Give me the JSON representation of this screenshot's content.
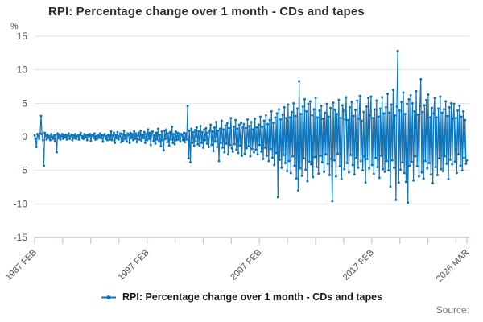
{
  "title": "RPI: Percentage change over 1 month - CDs and tapes",
  "y_axis": {
    "unit_label": "%",
    "ticks": [
      15,
      10,
      5,
      0,
      -5,
      -10,
      -15
    ],
    "min": -15,
    "max": 15
  },
  "x_axis": {
    "tick_count": 17,
    "labeled_tick_indices": [
      0,
      4,
      8,
      12,
      16
    ],
    "labels": [
      "1987 FEB",
      "1997 FEB",
      "2007 FEB",
      "2017 FEB",
      "2026 MAR"
    ]
  },
  "legend": {
    "label": "RPI: Percentage change over 1 month - CDs and tapes",
    "marker": "line-with-dot"
  },
  "source_label": "Source:",
  "colors": {
    "line": "#1076bc",
    "grid": "#e2e2e2",
    "axis": "#b9c7d6",
    "tick_text": "#4d4d4d",
    "title_text": "#2e2e2e",
    "source_text": "#7d7d7d"
  },
  "chart_data": {
    "type": "line",
    "title": "RPI: Percentage change over 1 month - CDs and tapes",
    "legend": "RPI: Percentage change over 1 month - CDs and tapes",
    "unit": "%",
    "frequency": "monthly",
    "x_start": "1987-02",
    "x_end": "2026-03",
    "ylim": [
      -15,
      15
    ],
    "grid": true,
    "legend_position": "bottom-center",
    "x_tick_labels": [
      "1987 FEB",
      "1997 FEB",
      "2007 FEB",
      "2017 FEB",
      "2026 MAR"
    ],
    "notable_points": [
      {
        "x": "2019-12",
        "y": 12.8
      },
      {
        "x": "2020-11",
        "y": -9.8
      },
      {
        "x": "2014-01",
        "y": -9.6
      },
      {
        "x": "2009-03",
        "y": -9.0
      },
      {
        "x": "2011-01",
        "y": 8.3
      },
      {
        "x": "2022-01",
        "y": 8.6
      }
    ],
    "values": [
      0.2,
      -0.3,
      -1.5,
      0.4,
      0.1,
      -0.3,
      0.5,
      3.1,
      0.4,
      -0.5,
      -4.3,
      0.6,
      0.2,
      -0.4,
      0.3,
      -0.2,
      0.1,
      -0.5,
      0.4,
      0.0,
      -0.3,
      0.2,
      -0.6,
      0.3,
      -2.3,
      0.5,
      -0.2,
      0.3,
      -0.4,
      0.1,
      0.4,
      -0.3,
      0.2,
      -0.1,
      0.3,
      -0.4,
      0.2,
      0.5,
      -0.3,
      0.1,
      0.3,
      -0.5,
      0.2,
      -0.2,
      0.4,
      -0.3,
      0.1,
      0.2,
      -0.4,
      0.3,
      0.6,
      -0.2,
      0.1,
      -0.3,
      0.4,
      -0.1,
      0.2,
      -0.5,
      0.3,
      0.1,
      0.4,
      -0.6,
      0.2,
      0.3,
      -0.2,
      0.5,
      -0.4,
      0.1,
      -0.3,
      0.2,
      -0.1,
      0.5,
      -0.2,
      0.3,
      -0.7,
      0.2,
      0.4,
      -0.3,
      0.1,
      -0.5,
      0.3,
      0.2,
      -0.4,
      0.8,
      -0.5,
      0.2,
      0.6,
      -0.9,
      0.3,
      -0.2,
      0.7,
      -0.4,
      0.1,
      0.5,
      -0.8,
      0.4,
      -0.6,
      0.9,
      -0.3,
      0.2,
      -0.7,
      0.5,
      0.3,
      -0.9,
      0.6,
      -0.2,
      0.4,
      -0.5,
      0.8,
      -0.3,
      0.5,
      -0.8,
      0.2,
      0.6,
      -0.4,
      0.9,
      -0.6,
      0.3,
      -0.2,
      0.7,
      -0.9,
      0.4,
      -0.5,
      1.1,
      -0.3,
      0.6,
      -1.2,
      0.5,
      0.8,
      -0.6,
      0.2,
      -1.0,
      0.6,
      -0.4,
      1.2,
      -0.7,
      0.3,
      -1.4,
      0.8,
      -0.5,
      -2.0,
      0.9,
      -0.3,
      1.1,
      -0.8,
      0.5,
      -1.3,
      0.7,
      -0.4,
      1.5,
      -0.9,
      0.4,
      -1.1,
      0.8,
      -0.5,
      0.6,
      -0.4,
      0.5,
      -0.7,
      0.4,
      0.3,
      -0.5,
      0.6,
      -0.8,
      0.5,
      -0.4,
      4.6,
      -3.2,
      0.9,
      -3.8,
      1.2,
      -0.9,
      0.7,
      -1.3,
      1.0,
      -0.7,
      1.4,
      -1.1,
      0.8,
      -1.3,
      1.6,
      -0.9,
      0.7,
      -1.6,
      1.1,
      -0.5,
      1.3,
      -1.0,
      0.6,
      -1.5,
      0.9,
      1.8,
      -1.2,
      0.8,
      -2.1,
      1.4,
      -0.7,
      2.2,
      -1.5,
      0.9,
      -3.6,
      1.2,
      -0.9,
      2.4,
      -1.6,
      1.1,
      -2.3,
      1.7,
      -1.0,
      2.0,
      -2.6,
      1.3,
      -1.2,
      2.8,
      -1.7,
      -2.2,
      1.5,
      -1.1,
      2.5,
      -1.9,
      1.2,
      -2.4,
      1.8,
      -1.3,
      2.1,
      -2.8,
      1.4,
      1.9,
      -2.5,
      1.3,
      -1.7,
      2.6,
      -1.4,
      1.6,
      -2.9,
      2.2,
      -1.8,
      1.1,
      -2.3,
      2.7,
      -1.9,
      1.4,
      -2.6,
      1.8,
      -1.2,
      3.0,
      -2.2,
      1.5,
      -3.3,
      2.4,
      -1.6,
      3.2,
      -2.8,
      1.9,
      -3.6,
      2.5,
      -1.8,
      3.8,
      -3.1,
      2.1,
      -4.2,
      2.9,
      -2.4,
      3.5,
      -9.0,
      4.1,
      -3.4,
      2.6,
      -4.6,
      3.3,
      -2.7,
      4.4,
      -3.9,
      2.8,
      -5.1,
      4.8,
      -3.6,
      2.9,
      -5.4,
      3.7,
      -2.9,
      5.0,
      -4.3,
      3.1,
      -6.2,
      4.2,
      -8.0,
      8.3,
      -4.7,
      3.4,
      -5.8,
      4.5,
      -3.2,
      5.6,
      -4.9,
      3.8,
      -6.6,
      4.9,
      -3.7,
      5.3,
      -4.1,
      3.2,
      -6.0,
      4.1,
      -3.0,
      5.8,
      -4.5,
      2.9,
      -5.5,
      3.9,
      -2.8,
      4.6,
      -3.8,
      2.7,
      -5.2,
      3.6,
      -2.6,
      4.9,
      -4.0,
      3.0,
      -5.7,
      4.3,
      -3.3,
      -9.6,
      5.1,
      -3.5,
      4.0,
      -5.9,
      3.4,
      -2.5,
      5.5,
      -4.4,
      2.8,
      -6.3,
      4.7,
      3.9,
      -4.8,
      2.6,
      5.9,
      -3.9,
      2.5,
      -5.3,
      4.4,
      -2.7,
      5.2,
      -4.2,
      3.1,
      -5.6,
      4.0,
      -3.1,
      5.4,
      -4.6,
      2.7,
      6.1,
      -3.6,
      2.4,
      -5.0,
      3.7,
      -2.9,
      -6.8,
      4.5,
      -3.3,
      5.8,
      -4.7,
      3.2,
      6.0,
      -4.2,
      2.8,
      -5.5,
      4.1,
      -3.1,
      5.4,
      -4.5,
      3.0,
      -6.1,
      4.2,
      -2.8,
      5.9,
      -4.8,
      3.5,
      -5.2,
      4.4,
      -3.6,
      6.4,
      -5.0,
      3.6,
      -7.4,
      4.8,
      -3.5,
      7.0,
      -4.6,
      3.2,
      -9.4,
      4.5,
      12.8,
      -6.8,
      3.9,
      -4.9,
      5.2,
      -3.8,
      6.6,
      -5.4,
      3.4,
      -6.7,
      4.9,
      -9.8,
      5.6,
      -4.3,
      6.2,
      -3.7,
      5.0,
      -6.5,
      3.8,
      -2.9,
      6.8,
      -4.4,
      3.3,
      -5.9,
      4.6,
      8.6,
      -5.3,
      3.7,
      -6.2,
      4.7,
      -3.6,
      5.5,
      -4.7,
      6.3,
      -3.9,
      2.9,
      -5.6,
      4.3,
      -6.9,
      3.5,
      5.8,
      -4.5,
      2.9,
      -5.7,
      4.2,
      -3.2,
      6.0,
      -4.8,
      3.6,
      -5.1,
      4.1,
      -2.9,
      5.3,
      -4.0,
      3.1,
      -6.3,
      4.4,
      -3.4,
      5.0,
      -4.1,
      2.7,
      4.9,
      -3.7,
      2.8,
      -5.4,
      3.9,
      -2.6,
      4.6,
      -4.3,
      3.0,
      -5.0,
      3.8,
      -3.1,
      2.5,
      -4.0,
      -3.5
    ]
  }
}
